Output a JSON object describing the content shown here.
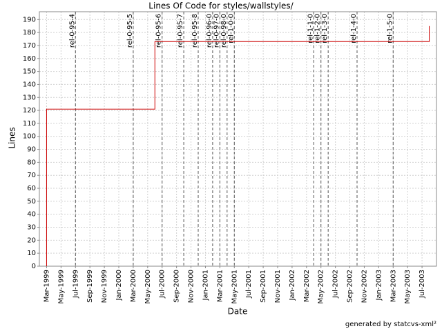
{
  "chart_data": {
    "type": "line",
    "title": "Lines Of Code for styles/wallstyles/",
    "x_label": "Date",
    "y_label": "Lines",
    "footer": "generated by statcvs-xml²",
    "x": [
      "1999-03",
      "1999-03",
      "1999-03",
      "2000-06",
      "2000-06",
      "2000-06",
      "2003-08",
      "2003-08"
    ],
    "values": [
      0,
      110,
      121,
      121,
      157,
      173,
      173,
      185
    ],
    "color": "#cc0000",
    "xlim": [
      "1999-02",
      "2003-09"
    ],
    "ylim": [
      0,
      196
    ],
    "yticks": [
      0,
      10,
      20,
      30,
      40,
      50,
      60,
      70,
      80,
      90,
      100,
      110,
      120,
      130,
      140,
      150,
      160,
      170,
      180,
      190
    ],
    "xticks": [
      {
        "value": "1999-03",
        "label": "Mar-1999"
      },
      {
        "value": "1999-05",
        "label": "May-1999"
      },
      {
        "value": "1999-07",
        "label": "Jul-1999"
      },
      {
        "value": "1999-09",
        "label": "Sep-1999"
      },
      {
        "value": "1999-11",
        "label": "Nov-1999"
      },
      {
        "value": "2000-01",
        "label": "Jan-2000"
      },
      {
        "value": "2000-03",
        "label": "Mar-2000"
      },
      {
        "value": "2000-05",
        "label": "May-2000"
      },
      {
        "value": "2000-07",
        "label": "Jul-2000"
      },
      {
        "value": "2000-09",
        "label": "Sep-2000"
      },
      {
        "value": "2000-11",
        "label": "Nov-2000"
      },
      {
        "value": "2001-01",
        "label": "Jan-2001"
      },
      {
        "value": "2001-03",
        "label": "Mar-2001"
      },
      {
        "value": "2001-05",
        "label": "May-2001"
      },
      {
        "value": "2001-07",
        "label": "Jul-2001"
      },
      {
        "value": "2001-09",
        "label": "Sep-2001"
      },
      {
        "value": "2001-11",
        "label": "Nov-2001"
      },
      {
        "value": "2002-01",
        "label": "Jan-2002"
      },
      {
        "value": "2002-03",
        "label": "Mar-2002"
      },
      {
        "value": "2002-05",
        "label": "May-2002"
      },
      {
        "value": "2002-07",
        "label": "Jul-2002"
      },
      {
        "value": "2002-09",
        "label": "Sep-2002"
      },
      {
        "value": "2002-11",
        "label": "Nov-2002"
      },
      {
        "value": "2003-01",
        "label": "Jan-2003"
      },
      {
        "value": "2003-03",
        "label": "Mar-2003"
      },
      {
        "value": "2003-05",
        "label": "May-2003"
      },
      {
        "value": "2003-07",
        "label": "Jul-2003"
      }
    ],
    "grid": true,
    "markers": [
      {
        "label": "rel-0-95-4",
        "x": "1999-07"
      },
      {
        "label": "rel-0-95-5",
        "x": "2000-03"
      },
      {
        "label": "rel-0-95-6",
        "x": "2000-07"
      },
      {
        "label": "rel-0-95-7",
        "x": "2000-10"
      },
      {
        "label": "rel-0-95-8",
        "x": "2000-12"
      },
      {
        "label": "rel-0-96-0",
        "x": "2001-02"
      },
      {
        "label": "rel-0-97-0",
        "x": "2001-03"
      },
      {
        "label": "rel-0-98-0",
        "x": "2001-04"
      },
      {
        "label": "rel-1-0-0",
        "x": "2001-05"
      },
      {
        "label": "rel-1-1-0",
        "x": "2002-04"
      },
      {
        "label": "rel-1-2-0",
        "x": "2002-05"
      },
      {
        "label": "rel-1-3-0",
        "x": "2002-06"
      },
      {
        "label": "rel-1-4-0",
        "x": "2002-10"
      },
      {
        "label": "rel-1-5-0",
        "x": "2003-03"
      }
    ]
  }
}
